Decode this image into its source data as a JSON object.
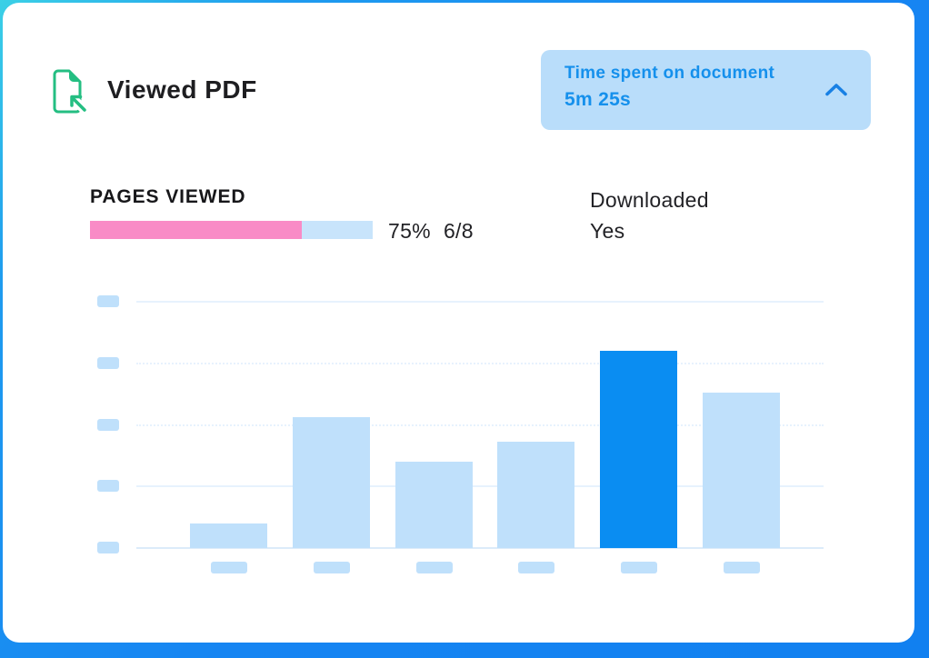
{
  "header": {
    "icon": "document-view-icon",
    "title": "Viewed PDF"
  },
  "time_badge": {
    "label": "Time spent on document",
    "value": "5m 25s",
    "icon": "chevron-up-icon"
  },
  "pages_viewed": {
    "label": "PAGES VIEWED",
    "percent": "75%",
    "fraction": "6/8",
    "progress_percent": 75
  },
  "downloaded": {
    "label": "Downloaded",
    "value": "Yes"
  },
  "colors": {
    "accent_blue": "#0A8DF2",
    "bar_light": "#BFE0FB",
    "placeholder_blue": "#BFE0FB",
    "badge_bg": "#B9DDFA",
    "badge_text": "#1590EC",
    "chevron_blue": "#1880E4",
    "progress_pink": "#F98BC6",
    "progress_track": "#C8E4FB",
    "icon_green": "#24BE82",
    "grid_line": "#E7F2FD",
    "grid_baseline": "#DCEBFA",
    "frame_blue": "#1685F2",
    "frame_cyan": "#3BD0E6",
    "text_dark": "#1E1E21"
  },
  "chart_data": {
    "type": "bar",
    "title": "",
    "xlabel": "",
    "ylabel": "",
    "categories": [
      "",
      "",
      "",
      "",
      "",
      ""
    ],
    "values": [
      10,
      53,
      35,
      43,
      80,
      63
    ],
    "highlight_index": 4,
    "ylim": [
      0,
      100
    ],
    "gridline_count": 5,
    "grid": "on",
    "legend": "none",
    "axis_labels": "placeholder-blocks"
  }
}
